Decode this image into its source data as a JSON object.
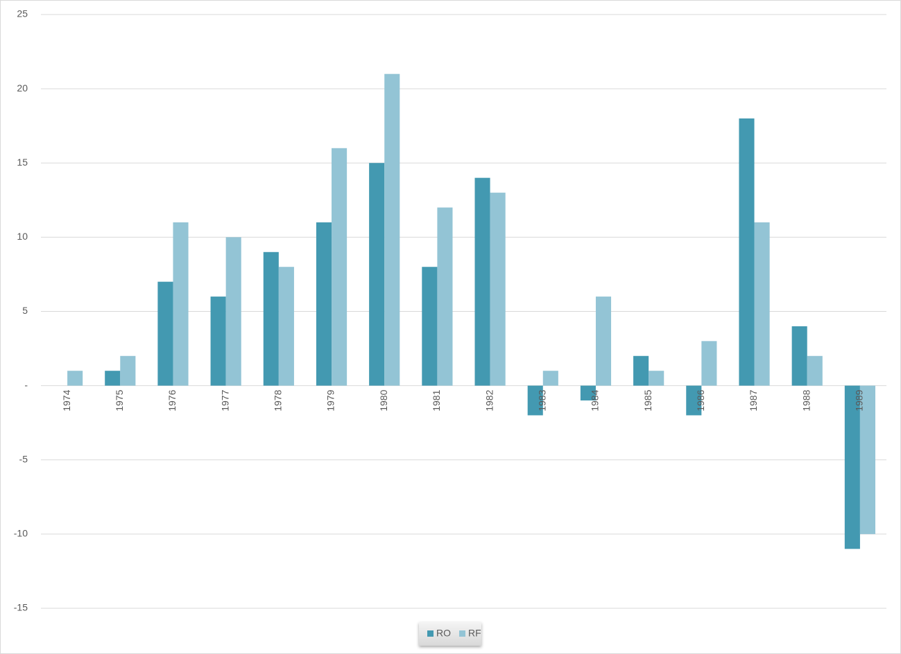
{
  "chart_data": {
    "type": "bar",
    "categories": [
      "1974",
      "1975",
      "1976",
      "1977",
      "1978",
      "1979",
      "1980",
      "1981",
      "1982",
      "1983",
      "1984",
      "1985",
      "1986",
      "1987",
      "1988",
      "1989"
    ],
    "series": [
      {
        "name": "RO",
        "color": "#4399b1",
        "values": [
          0,
          1,
          7,
          6,
          9,
          11,
          15,
          8,
          14,
          -2,
          -1,
          2,
          -2,
          18,
          4,
          -11
        ]
      },
      {
        "name": "RF",
        "color": "#93c4d5",
        "values": [
          1,
          2,
          11,
          10,
          8,
          16,
          21,
          12,
          13,
          1,
          6,
          1,
          3,
          11,
          2,
          -10
        ]
      }
    ],
    "ylim": [
      -15,
      25
    ],
    "yticks": [
      -15,
      -10,
      -5,
      {
        "value": 0,
        "label": "-"
      },
      5,
      10,
      15,
      20,
      25
    ],
    "grid": true,
    "legend": "bottom"
  }
}
